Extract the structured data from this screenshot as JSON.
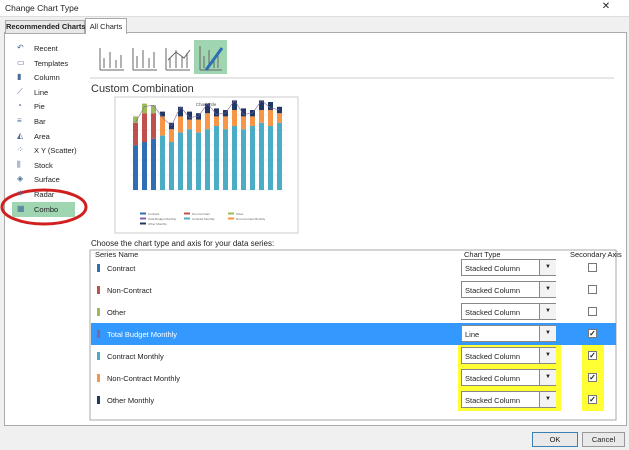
{
  "window": {
    "title": "Change Chart Type"
  },
  "tabs": [
    "Recommended Charts",
    "All Charts"
  ],
  "active_tab": 1,
  "sidebar": [
    "Recent",
    "Templates",
    "Column",
    "Line",
    "Pie",
    "Bar",
    "Area",
    "X Y (Scatter)",
    "Stock",
    "Surface",
    "Radar",
    "Combo"
  ],
  "selected_sidebar": 11,
  "section_title": "Custom Combination",
  "preview": {
    "title": "Chart Title"
  },
  "instruction": "Choose the chart type and axis for your data series:",
  "table": {
    "headers": [
      "Series Name",
      "Chart Type",
      "Secondary Axis"
    ],
    "rows": [
      {
        "name": "Contract",
        "color": "#2f6eb5",
        "chart_type": "Stacked Column",
        "secondary": false,
        "selected": false,
        "highlight": false
      },
      {
        "name": "Non-Contract",
        "color": "#c0504d",
        "chart_type": "Stacked Column",
        "secondary": false,
        "selected": false,
        "highlight": false
      },
      {
        "name": "Other",
        "color": "#9bbb59",
        "chart_type": "Stacked Column",
        "secondary": false,
        "selected": false,
        "highlight": false
      },
      {
        "name": "Total Budget Monthly",
        "color": "#8064a2",
        "chart_type": "Line",
        "secondary": true,
        "selected": true,
        "highlight": true
      },
      {
        "name": "Contract Monthly",
        "color": "#4bacc6",
        "chart_type": "Stacked Column",
        "secondary": true,
        "selected": false,
        "highlight": true
      },
      {
        "name": "Non-Contract Monthly",
        "color": "#f79646",
        "chart_type": "Stacked Column",
        "secondary": true,
        "selected": false,
        "highlight": true
      },
      {
        "name": "Other Monthly",
        "color": "#1f3864",
        "chart_type": "Stacked Column",
        "secondary": true,
        "selected": false,
        "highlight": true
      }
    ]
  },
  "buttons": [
    "OK",
    "Cancel"
  ]
}
